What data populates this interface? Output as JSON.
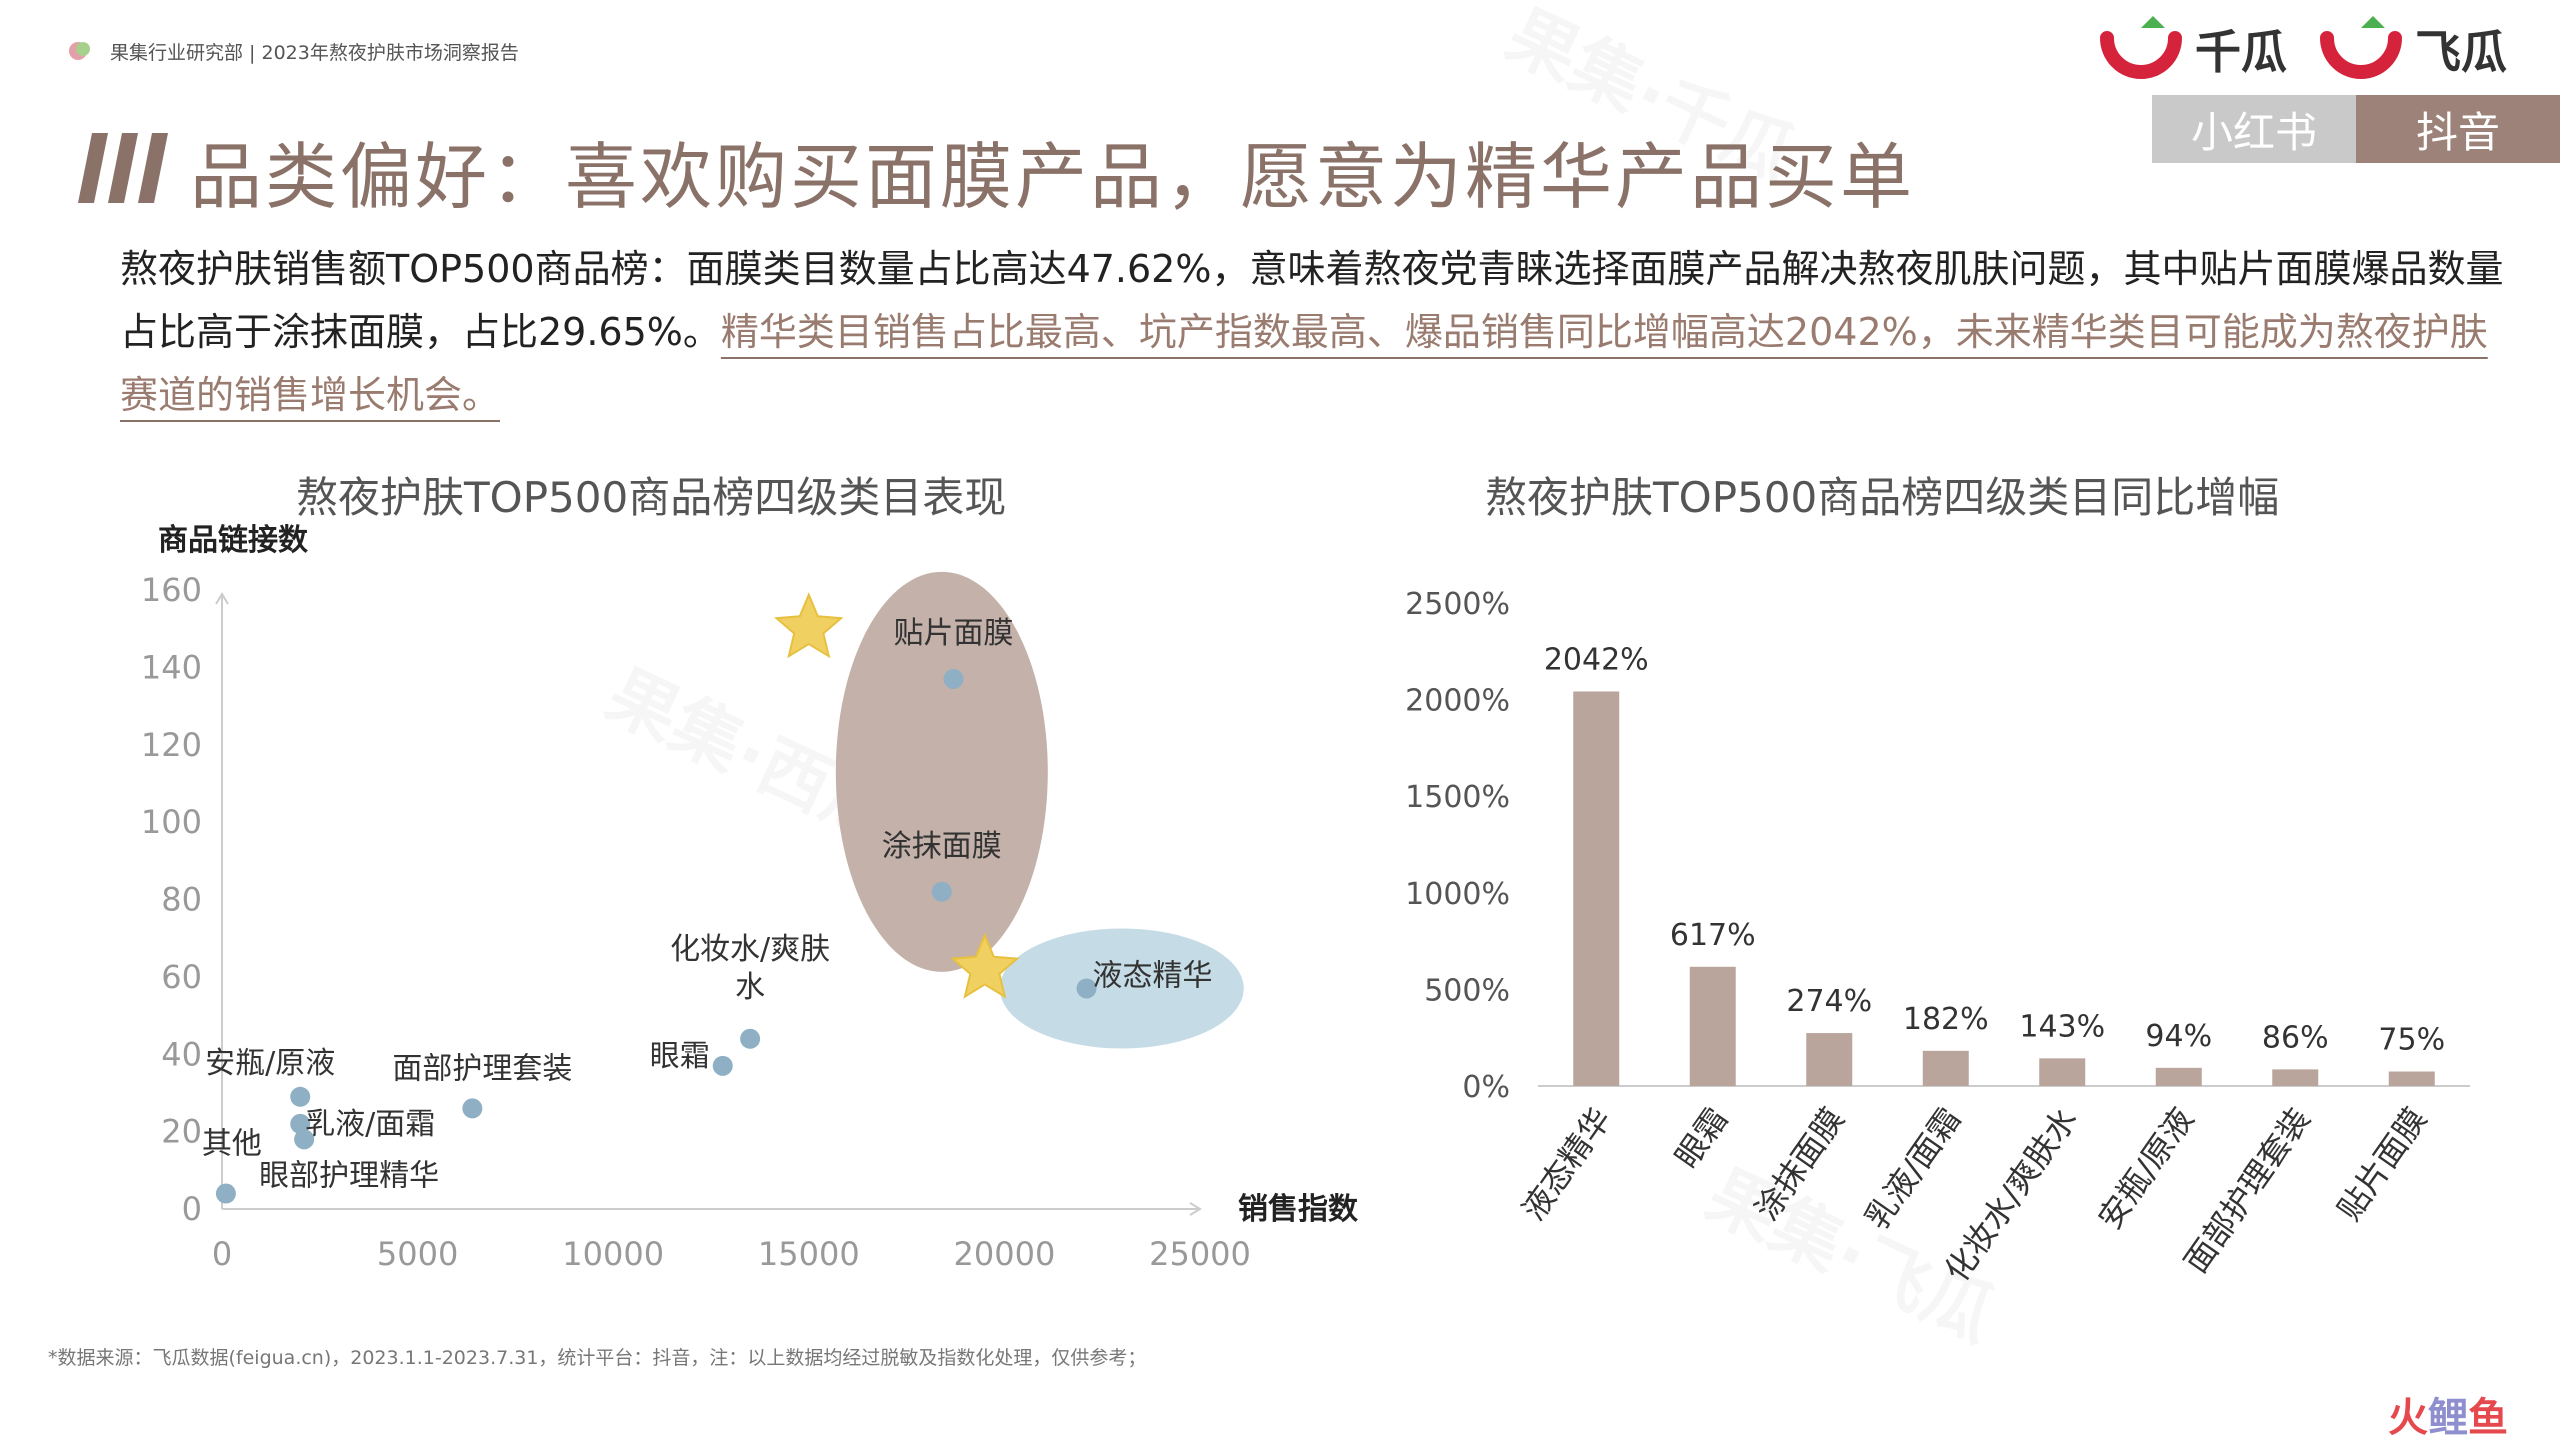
{
  "header": {
    "report_label": "果集行业研究部 | 2023年熬夜护肤市场洞察报告",
    "logos": [
      "千瓜",
      "飞瓜"
    ],
    "platform_tabs": [
      "小红书",
      "抖音"
    ]
  },
  "title": "品类偏好：喜欢购买面膜产品，愿意为精华产品买单",
  "intro": {
    "text_plain": "熬夜护肤销售额TOP500商品榜：面膜类目数量占比高达47.62%，意味着熬夜党青睐选择面膜产品解决熬夜肌肤问题，其中贴片面膜爆品数量占比高于涂抹面膜，占比29.65%。",
    "text_highlight": "精华类目销售占比最高、坑产指数最高、爆品销售同比增幅高达2042%，未来精华类目可能成为熬夜护肤赛道的销售增长机会。"
  },
  "colors": {
    "accent": "#8a7268",
    "bar": "#b9a59c",
    "point": "#8fb0c4",
    "ellipse_brown": "#c3b1aa",
    "ellipse_blue": "#c5dbe6",
    "star": "#f0d060",
    "logo_red": "#d6233c",
    "logo_green": "#4caf50"
  },
  "chart_data": [
    {
      "type": "scatter",
      "title": "熬夜护肤TOP500商品榜四级类目表现",
      "xlabel": "销售指数",
      "ylabel": "商品链接数",
      "xlim": [
        0,
        25000
      ],
      "ylim": [
        0,
        160
      ],
      "x_ticks": [
        "0",
        "5000",
        "10000",
        "15000",
        "20000",
        "25000"
      ],
      "y_ticks": [
        "0",
        "20",
        "40",
        "60",
        "80",
        "100",
        "120",
        "140",
        "160"
      ],
      "points": [
        {
          "label": "贴片面膜",
          "x": 18700,
          "y": 137
        },
        {
          "label": "涂抹面膜",
          "x": 18400,
          "y": 82
        },
        {
          "label": "液态精华",
          "x": 22100,
          "y": 57
        },
        {
          "label": "化妆水/爽肤水",
          "x": 13500,
          "y": 44
        },
        {
          "label": "眼霜",
          "x": 12800,
          "y": 37
        },
        {
          "label": "面部护理套装",
          "x": 6400,
          "y": 26
        },
        {
          "label": "安瓶/原液",
          "x": 2000,
          "y": 29
        },
        {
          "label": "乳液/面霜",
          "x": 2000,
          "y": 22
        },
        {
          "label": "眼部护理精华",
          "x": 2100,
          "y": 18
        },
        {
          "label": "其他",
          "x": 100,
          "y": 4
        }
      ],
      "highlights": [
        "面膜",
        "液态精华"
      ]
    },
    {
      "type": "bar",
      "title": "熬夜护肤TOP500商品榜四级类目同比增幅",
      "categories": [
        "液态精华",
        "眼霜",
        "涂抹面膜",
        "乳液/面霜",
        "化妆水/爽肤水",
        "安瓶/原液",
        "面部护理套装",
        "贴片面膜"
      ],
      "values": [
        2042,
        617,
        274,
        182,
        143,
        94,
        86,
        75
      ],
      "value_labels": [
        "2042%",
        "617%",
        "274%",
        "182%",
        "143%",
        "94%",
        "86%",
        "75%"
      ],
      "ylim": [
        0,
        2500
      ],
      "y_ticks": [
        "0%",
        "500%",
        "1000%",
        "1500%",
        "2000%",
        "2500%"
      ],
      "unit": "%"
    }
  ],
  "footnote": "*数据来源：飞瓜数据(feigua.cn)，2023.1.1-2023.7.31，统计平台：抖音，注：以上数据均经过脱敏及指数化处理，仅供参考；",
  "corner_logo": {
    "part1": "火",
    "part2": "鲤",
    "part3": "鱼"
  },
  "watermarks": [
    "果集·千瓜",
    "果集·西瓜",
    "果集·飞瓜"
  ]
}
